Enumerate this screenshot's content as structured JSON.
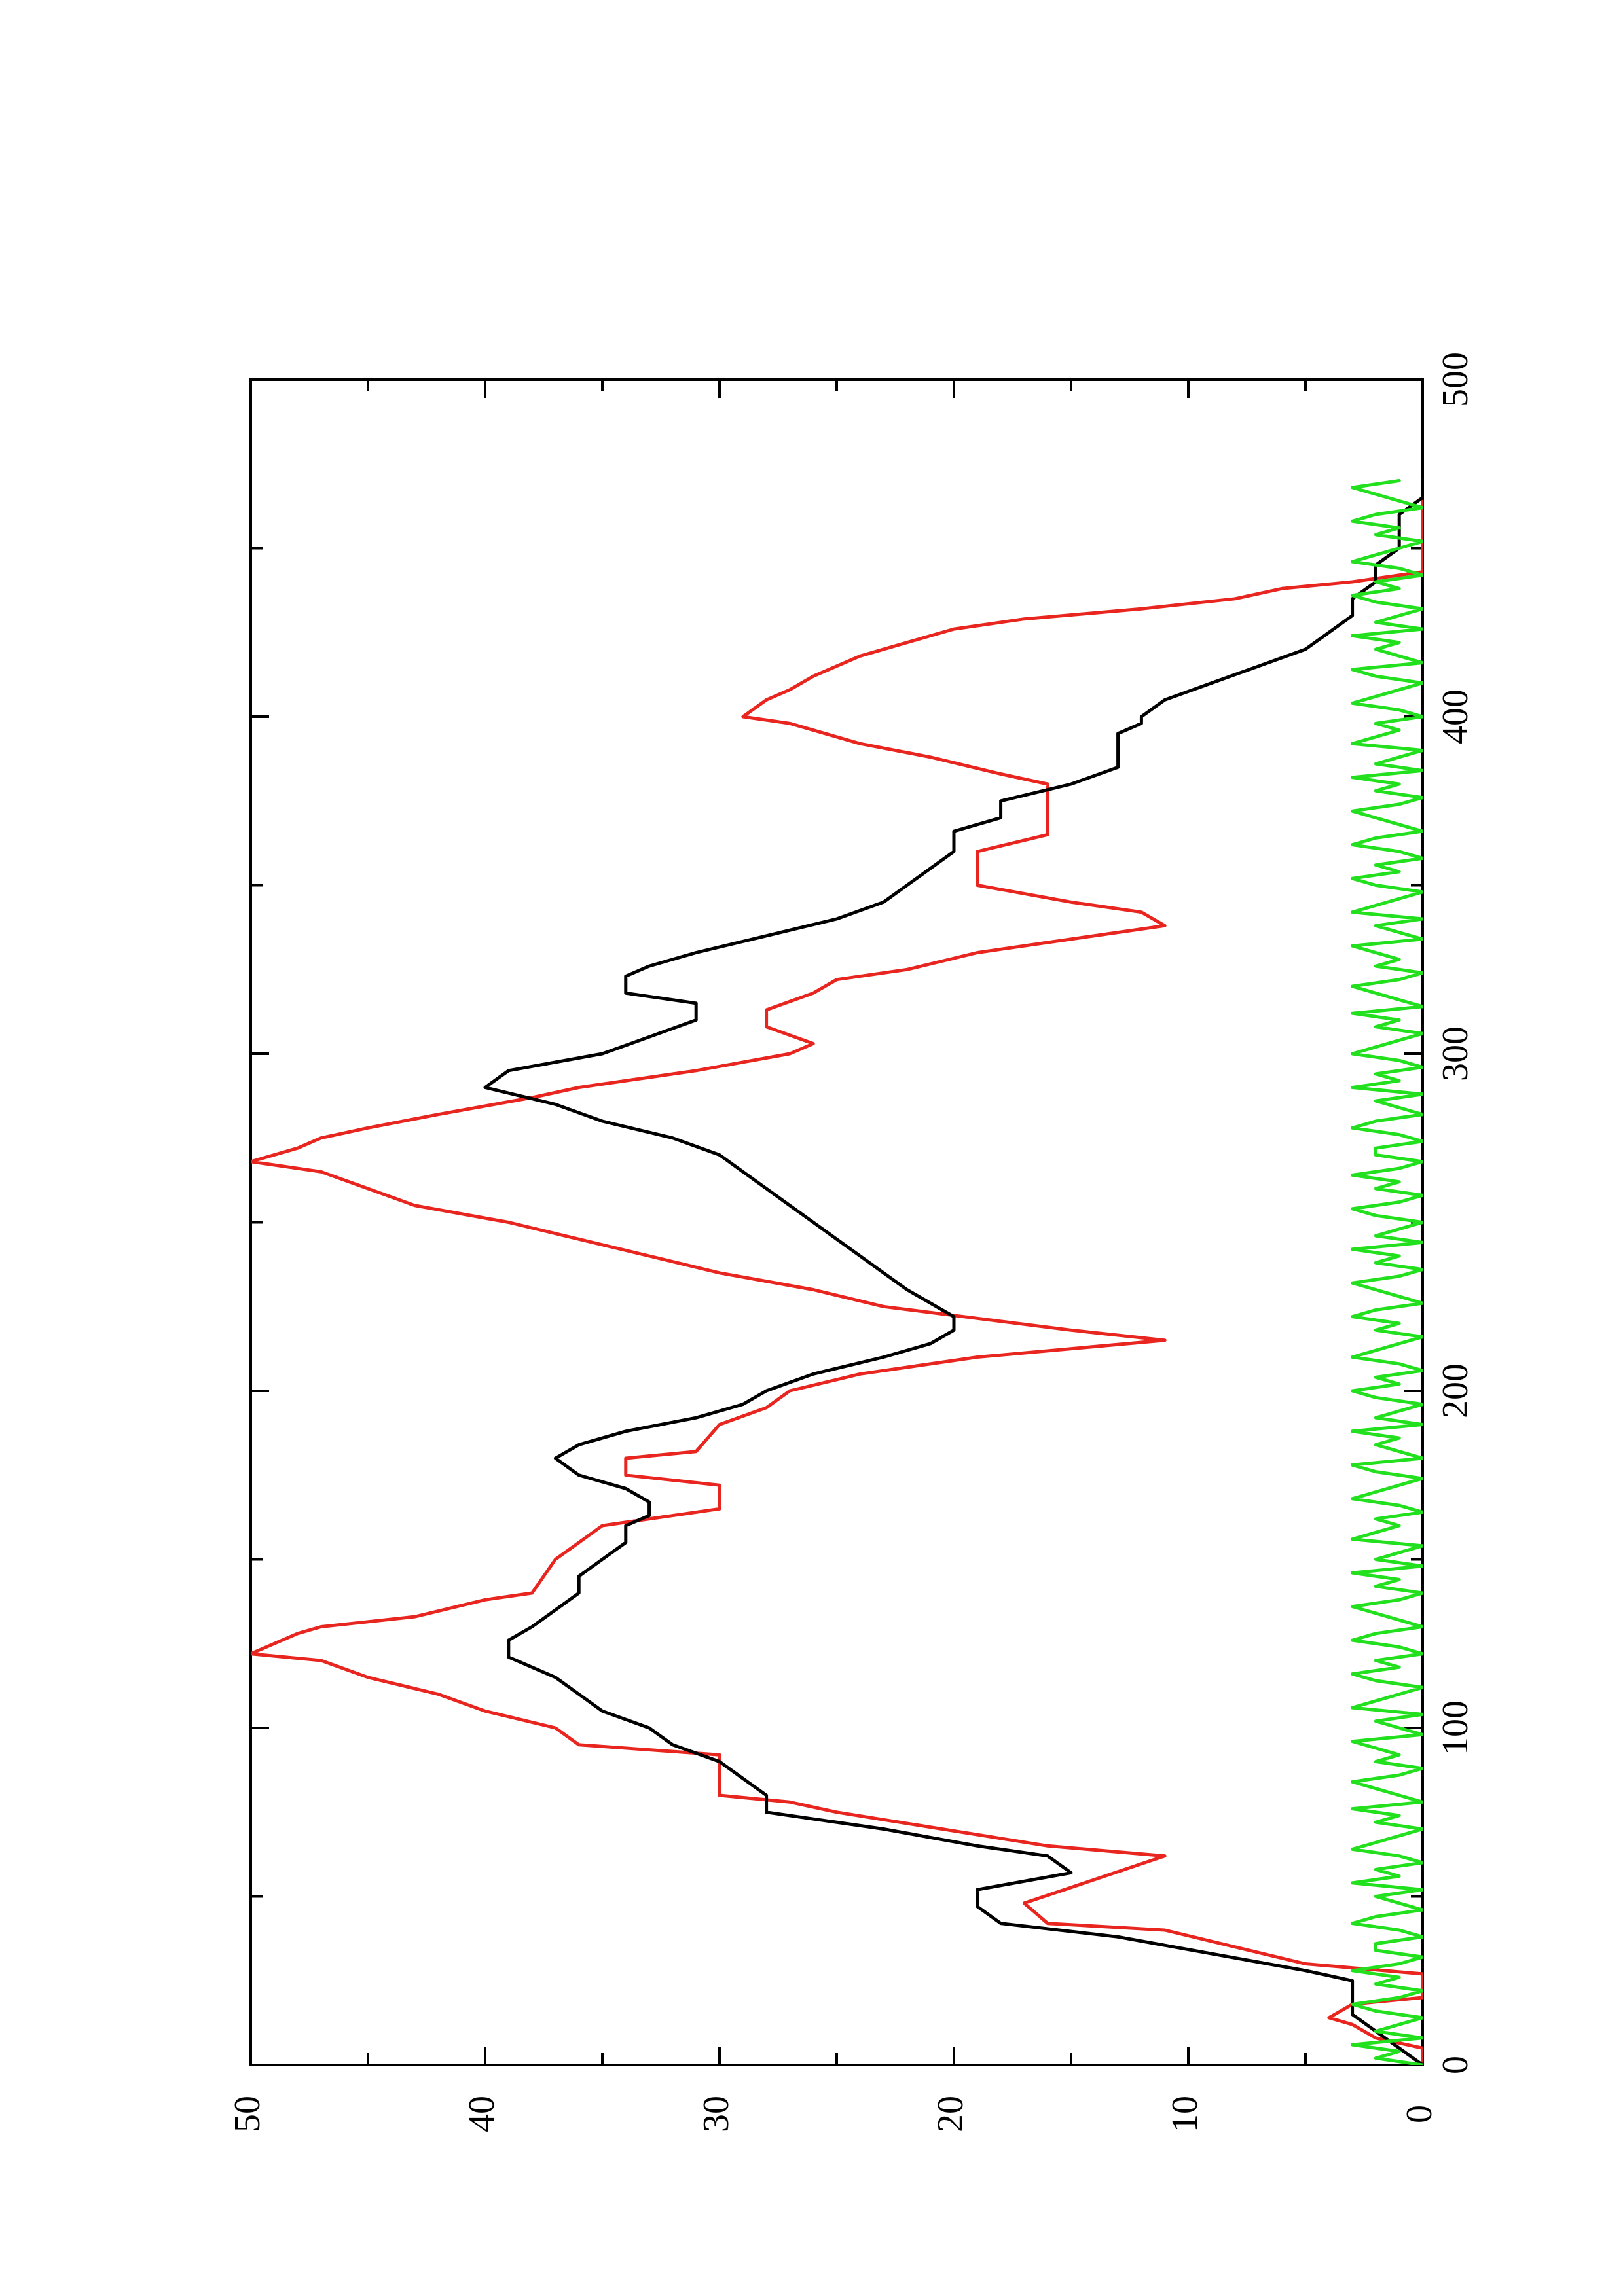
{
  "chart_data": {
    "type": "line",
    "title": "",
    "xlabel": "",
    "ylabel": "",
    "orientation": "rotated-90-ccw",
    "xlim": [
      0,
      500
    ],
    "ylim": [
      0,
      50
    ],
    "x_ticks_major": [
      0,
      100,
      200,
      300,
      400,
      500
    ],
    "x_ticks_major_labels": [
      "0",
      "100",
      "200",
      "300",
      "400",
      "500"
    ],
    "x_ticks_minor": [
      50,
      150,
      250,
      350,
      450
    ],
    "y_ticks_major": [
      0,
      10,
      20,
      30,
      40,
      50
    ],
    "y_ticks_major_labels": [
      "0",
      "10",
      "20",
      "30",
      "40",
      "50"
    ],
    "y_ticks_minor": [
      5,
      15,
      25,
      35,
      45
    ],
    "grid": false,
    "legend": "none",
    "colors": {
      "red": "#e8261f",
      "black": "#000000",
      "green": "#22e01e"
    },
    "series": [
      {
        "color": "#e8261f",
        "step": true,
        "points": [
          [
            0,
            0
          ],
          [
            5,
            0
          ],
          [
            8,
            2
          ],
          [
            12,
            3
          ],
          [
            14,
            4
          ],
          [
            18,
            3
          ],
          [
            20,
            0
          ],
          [
            27,
            0
          ],
          [
            30,
            5
          ],
          [
            40,
            11
          ],
          [
            42,
            16
          ],
          [
            48,
            17
          ],
          [
            55,
            14
          ],
          [
            62,
            11
          ],
          [
            65,
            16
          ],
          [
            75,
            25
          ],
          [
            78,
            27
          ],
          [
            80,
            30
          ],
          [
            92,
            30
          ],
          [
            95,
            36
          ],
          [
            100,
            37
          ],
          [
            105,
            40
          ],
          [
            110,
            42
          ],
          [
            115,
            45
          ],
          [
            120,
            47
          ],
          [
            122,
            50
          ],
          [
            125,
            49
          ],
          [
            128,
            48
          ],
          [
            130,
            47
          ],
          [
            133,
            43
          ],
          [
            138,
            40
          ],
          [
            140,
            38
          ],
          [
            150,
            37
          ],
          [
            155,
            36
          ],
          [
            160,
            35
          ],
          [
            165,
            30
          ],
          [
            172,
            30
          ],
          [
            175,
            34
          ],
          [
            180,
            34
          ],
          [
            182,
            31
          ],
          [
            190,
            30
          ],
          [
            195,
            28
          ],
          [
            200,
            27
          ],
          [
            205,
            24
          ],
          [
            210,
            19
          ],
          [
            215,
            11
          ],
          [
            218,
            15
          ],
          [
            225,
            23
          ],
          [
            230,
            26
          ],
          [
            235,
            30
          ],
          [
            240,
            33
          ],
          [
            245,
            36
          ],
          [
            250,
            39
          ],
          [
            255,
            43
          ],
          [
            260,
            45
          ],
          [
            265,
            47
          ],
          [
            268,
            50
          ],
          [
            272,
            48
          ],
          [
            275,
            47
          ],
          [
            278,
            45
          ],
          [
            282,
            42
          ],
          [
            287,
            38
          ],
          [
            290,
            36
          ],
          [
            295,
            31
          ],
          [
            300,
            27
          ],
          [
            303,
            26
          ],
          [
            308,
            28
          ],
          [
            313,
            28
          ],
          [
            318,
            26
          ],
          [
            322,
            25
          ],
          [
            325,
            22
          ],
          [
            330,
            19
          ],
          [
            333,
            16
          ],
          [
            338,
            11
          ],
          [
            342,
            12
          ],
          [
            345,
            15
          ],
          [
            350,
            19
          ],
          [
            360,
            19
          ],
          [
            365,
            16
          ],
          [
            370,
            16
          ],
          [
            380,
            16
          ],
          [
            383,
            18
          ],
          [
            388,
            21
          ],
          [
            392,
            24
          ],
          [
            398,
            27
          ],
          [
            400,
            29
          ],
          [
            405,
            28
          ],
          [
            408,
            27
          ],
          [
            412,
            26
          ],
          [
            418,
            24
          ],
          [
            422,
            22
          ],
          [
            426,
            20
          ],
          [
            429,
            17
          ],
          [
            432,
            12
          ],
          [
            435,
            8
          ],
          [
            438,
            6
          ],
          [
            440,
            3
          ],
          [
            443,
            0
          ],
          [
            470,
            0
          ]
        ]
      },
      {
        "color": "#000000",
        "step": false,
        "points": [
          [
            0,
            0
          ],
          [
            5,
            1
          ],
          [
            10,
            2
          ],
          [
            15,
            3
          ],
          [
            20,
            3
          ],
          [
            25,
            3
          ],
          [
            28,
            5
          ],
          [
            33,
            9
          ],
          [
            38,
            13
          ],
          [
            42,
            18
          ],
          [
            47,
            19
          ],
          [
            52,
            19
          ],
          [
            57,
            15
          ],
          [
            62,
            16
          ],
          [
            65,
            19
          ],
          [
            70,
            23
          ],
          [
            75,
            28
          ],
          [
            80,
            28
          ],
          [
            85,
            29
          ],
          [
            90,
            30
          ],
          [
            95,
            32
          ],
          [
            100,
            33
          ],
          [
            105,
            35
          ],
          [
            110,
            36
          ],
          [
            115,
            37
          ],
          [
            118,
            38
          ],
          [
            121,
            39
          ],
          [
            126,
            39
          ],
          [
            130,
            38
          ],
          [
            135,
            37
          ],
          [
            140,
            36
          ],
          [
            145,
            36
          ],
          [
            150,
            35
          ],
          [
            155,
            34
          ],
          [
            160,
            34
          ],
          [
            163,
            33
          ],
          [
            167,
            33
          ],
          [
            171,
            34
          ],
          [
            175,
            36
          ],
          [
            180,
            37
          ],
          [
            184,
            36
          ],
          [
            188,
            34
          ],
          [
            192,
            31
          ],
          [
            196,
            29
          ],
          [
            200,
            28
          ],
          [
            205,
            26
          ],
          [
            210,
            23
          ],
          [
            214,
            21
          ],
          [
            218,
            20
          ],
          [
            222,
            20
          ],
          [
            226,
            21
          ],
          [
            230,
            22
          ],
          [
            235,
            23
          ],
          [
            240,
            24
          ],
          [
            245,
            25
          ],
          [
            250,
            26
          ],
          [
            255,
            27
          ],
          [
            260,
            28
          ],
          [
            265,
            29
          ],
          [
            270,
            30
          ],
          [
            275,
            32
          ],
          [
            280,
            35
          ],
          [
            285,
            37
          ],
          [
            290,
            40
          ],
          [
            295,
            39
          ],
          [
            300,
            35
          ],
          [
            305,
            33
          ],
          [
            310,
            31
          ],
          [
            315,
            31
          ],
          [
            318,
            34
          ],
          [
            323,
            34
          ],
          [
            326,
            33
          ],
          [
            330,
            31
          ],
          [
            335,
            28
          ],
          [
            340,
            25
          ],
          [
            345,
            23
          ],
          [
            350,
            22
          ],
          [
            355,
            21
          ],
          [
            360,
            20
          ],
          [
            366,
            20
          ],
          [
            370,
            18
          ],
          [
            375,
            18
          ],
          [
            380,
            15
          ],
          [
            385,
            13
          ],
          [
            390,
            13
          ],
          [
            395,
            13
          ],
          [
            398,
            12
          ],
          [
            400,
            12
          ],
          [
            405,
            11
          ],
          [
            410,
            9
          ],
          [
            415,
            7
          ],
          [
            420,
            5
          ],
          [
            425,
            4
          ],
          [
            430,
            3
          ],
          [
            435,
            3
          ],
          [
            440,
            2
          ],
          [
            445,
            2
          ],
          [
            450,
            1
          ],
          [
            455,
            1
          ],
          [
            460,
            1
          ],
          [
            465,
            0
          ],
          [
            470,
            0
          ]
        ]
      },
      {
        "color": "#22e01e",
        "step": false,
        "noise": true,
        "x_start": 0,
        "x_end": 470,
        "x_step": 2,
        "values": [
          0,
          2,
          1,
          3,
          0,
          2,
          1,
          0,
          2,
          3,
          1,
          0,
          2,
          1,
          3,
          1,
          0,
          2,
          2,
          0,
          1,
          3,
          2,
          0,
          1,
          2,
          0,
          3,
          1,
          2,
          0,
          1,
          3,
          2,
          1,
          0,
          2,
          1,
          3,
          0,
          1,
          2,
          3,
          1,
          0,
          2,
          1,
          2,
          3,
          0,
          1,
          2,
          0,
          3,
          2,
          1,
          0,
          2,
          3,
          1,
          2,
          0,
          1,
          3,
          2,
          0,
          1,
          2,
          3,
          1,
          0,
          2,
          1,
          3,
          0,
          2,
          1,
          0,
          3,
          2,
          1,
          2,
          0,
          1,
          3,
          2,
          1,
          0,
          2,
          3,
          0,
          1,
          2,
          1,
          3,
          0,
          2,
          1,
          0,
          2,
          3,
          1,
          2,
          0,
          1,
          3,
          2,
          1,
          0,
          2,
          1,
          3,
          2,
          0,
          1,
          2,
          3,
          1,
          0,
          2,
          1,
          3,
          0,
          2,
          1,
          0,
          2,
          3,
          1,
          0,
          2,
          1,
          3,
          1,
          0,
          2,
          2,
          0,
          1,
          3,
          2,
          0,
          1,
          2,
          0,
          3,
          1,
          2,
          0,
          1,
          3,
          2,
          1,
          0,
          2,
          1,
          3,
          0,
          1,
          2,
          3,
          1,
          0,
          2,
          1,
          2,
          3,
          0,
          1,
          2,
          0,
          3,
          2,
          1,
          0,
          2,
          3,
          1,
          2,
          0,
          1,
          3,
          2,
          0,
          1,
          2,
          3,
          1,
          0,
          2,
          1,
          3,
          0,
          2,
          1,
          0,
          3,
          2,
          1,
          2,
          0,
          1,
          3,
          2,
          1,
          0,
          2,
          3,
          0,
          1,
          2,
          1,
          3,
          0,
          2,
          1,
          0,
          2,
          3,
          1,
          2,
          0,
          1,
          3,
          2,
          1,
          0,
          2,
          1,
          3,
          2,
          0,
          1,
          2,
          3,
          1
        ]
      }
    ]
  }
}
